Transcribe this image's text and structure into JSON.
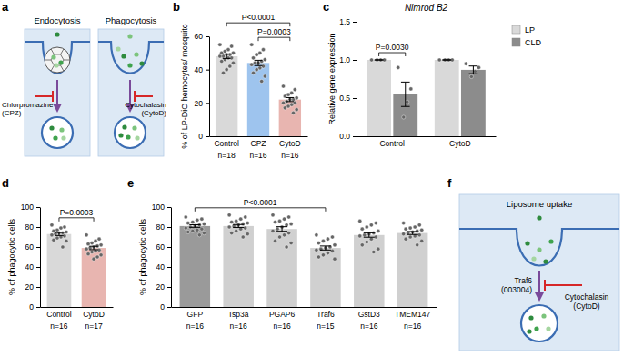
{
  "chart_data": [
    {
      "type": "bar",
      "panel": "b",
      "y_label": "% of LP-DiO hemocytes/ mosquito",
      "categories": [
        "Control",
        "CPZ",
        "CytoD"
      ],
      "n_labels": [
        "n=18",
        "n=16",
        "n=16"
      ],
      "values": [
        48,
        44,
        22
      ],
      "errors": [
        1.3,
        1.6,
        1.2
      ],
      "points": [
        [
          55,
          54,
          52,
          51,
          50,
          50,
          49,
          49,
          48,
          48,
          47,
          47,
          46,
          45,
          44,
          42,
          40,
          38
        ],
        [
          55,
          52,
          50,
          49,
          47,
          46,
          45,
          44,
          44,
          43,
          42,
          41,
          40,
          38,
          36,
          33
        ],
        [
          30,
          28,
          26,
          25,
          24,
          23,
          22,
          22,
          21,
          20,
          20,
          19,
          18,
          17,
          16,
          14
        ]
      ],
      "colors": [
        "#d9d9d9",
        "#9ec4ee",
        "#e8b5b0"
      ],
      "ylim": [
        0,
        60
      ],
      "yticks": [
        0,
        20,
        40,
        60
      ],
      "annotations": [
        {
          "text": "P<0.0001",
          "between": [
            "Control",
            "CytoD"
          ]
        },
        {
          "text": "P=0.0003",
          "between": [
            "CPZ",
            "CytoD"
          ]
        }
      ]
    },
    {
      "type": "bar",
      "panel": "c",
      "title": "Nimrod B2",
      "y_label": "Relative gene expression",
      "categories": [
        "Control",
        "CytoD"
      ],
      "series": [
        {
          "name": "LP",
          "color": "#d9d9d9",
          "values": [
            1,
            1
          ],
          "errors": [
            0,
            0
          ],
          "points": [
            [
              1,
              1,
              1,
              1
            ],
            [
              1,
              1,
              1,
              1
            ]
          ]
        },
        {
          "name": "CLD",
          "color": "#8c8c8c",
          "values": [
            0.55,
            0.87
          ],
          "errors": [
            0.16,
            0.05
          ],
          "points": [
            [
              0.9,
              0.62,
              0.45,
              0.25
            ],
            [
              0.95,
              0.9,
              0.85,
              0.78
            ]
          ]
        }
      ],
      "legend": "top-right",
      "ylim": [
        0,
        1.5
      ],
      "yticks": [
        {
          "value": 0,
          "label": "0.0"
        },
        0.5,
        {
          "value": 1,
          "label": "1.0"
        },
        1.5
      ],
      "annotations": [
        {
          "text": "P=0.0030",
          "category": "Control",
          "between": [
            "LP",
            "CLD"
          ]
        }
      ]
    },
    {
      "type": "bar",
      "panel": "d",
      "y_label": "% of phagocytic cells",
      "categories": [
        "Control",
        "CytoD"
      ],
      "n_labels": [
        "n=16",
        "n=17"
      ],
      "values": [
        73,
        59
      ],
      "errors": [
        1.5,
        1.7
      ],
      "points": [
        [
          82,
          80,
          79,
          77,
          76,
          75,
          74,
          74,
          73,
          72,
          71,
          70,
          69,
          67,
          66,
          60
        ],
        [
          72,
          68,
          66,
          64,
          63,
          62,
          61,
          60,
          59,
          58,
          57,
          56,
          55,
          53,
          52,
          50,
          48
        ]
      ],
      "colors": [
        "#d9d9d9",
        "#e8b5b0"
      ],
      "ylim": [
        0,
        100
      ],
      "yticks": [
        0,
        20,
        40,
        60,
        80,
        100
      ],
      "annotations": [
        {
          "text": "P=0.0003",
          "between": [
            "Control",
            "CytoD"
          ]
        }
      ]
    },
    {
      "type": "bar",
      "panel": "e",
      "y_label": "% of phagocytic cells",
      "categories": [
        "GFP",
        "Tsp3a",
        "PGAP6",
        "Traf6",
        "GstD3",
        "TMEM147"
      ],
      "n_labels": [
        "n=16",
        "n=16",
        "n=16",
        "n=15",
        "n=16",
        "n=16"
      ],
      "values": [
        81,
        81,
        78,
        59,
        72,
        74
      ],
      "errors": [
        1.3,
        1.5,
        2.3,
        2.0,
        2.2,
        1.5
      ],
      "points": [
        [
          90,
          88,
          87,
          85,
          84,
          83,
          82,
          81,
          80,
          79,
          78,
          77,
          76,
          75,
          74,
          72
        ],
        [
          92,
          90,
          88,
          86,
          85,
          84,
          83,
          82,
          81,
          80,
          79,
          78,
          76,
          74,
          73,
          70
        ],
        [
          92,
          90,
          88,
          86,
          85,
          83,
          82,
          80,
          78,
          76,
          74,
          72,
          70,
          66,
          64,
          60
        ],
        [
          72,
          70,
          68,
          66,
          64,
          62,
          60,
          59,
          58,
          57,
          56,
          54,
          52,
          50,
          48
        ],
        [
          86,
          84,
          82,
          80,
          78,
          76,
          74,
          73,
          72,
          71,
          70,
          68,
          65,
          62,
          58,
          55
        ],
        [
          84,
          82,
          80,
          79,
          78,
          77,
          76,
          75,
          74,
          73,
          72,
          71,
          70,
          68,
          66,
          62
        ]
      ],
      "colors": [
        "#9a9a9a",
        "#d0d0d0",
        "#d0d0d0",
        "#d0d0d0",
        "#d0d0d0",
        "#d0d0d0"
      ],
      "ylim": [
        0,
        100
      ],
      "yticks": [
        0,
        20,
        40,
        60,
        80,
        100
      ],
      "annotations": [
        {
          "text": "P<0.0001",
          "between": [
            "GFP",
            "Traf6"
          ]
        }
      ]
    }
  ],
  "diagrams": [
    {
      "panel": "a",
      "labels": [
        [
          "Endocytosis"
        ],
        [
          "Phagocytosis"
        ],
        [
          "Chlorpromazine",
          "(CPZ)"
        ],
        [
          "Cytochalasin",
          "(CytoD)"
        ]
      ]
    },
    {
      "panel": "f",
      "labels": [
        [
          "Liposome uptake"
        ],
        [
          "Traf6",
          "(003004)"
        ],
        [
          "Cytochalasin",
          "(CytoD)"
        ]
      ]
    }
  ]
}
